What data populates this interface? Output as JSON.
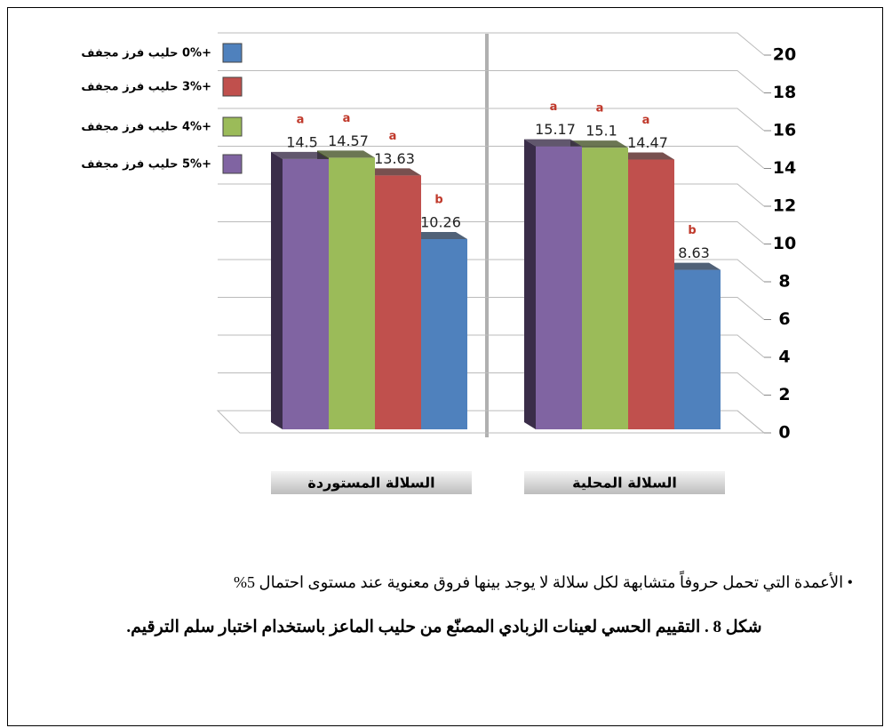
{
  "chart_data": {
    "type": "bar3d",
    "categories": [
      "السلالة المستوردة",
      "السلالة المحلية"
    ],
    "series": [
      {
        "name": "+5% حليب فرز مجفف",
        "color": "#8064a2",
        "values": [
          14.5,
          15.17
        ],
        "letters": [
          "a",
          "a"
        ]
      },
      {
        "name": "+4% حليب فرز مجفف",
        "color": "#9bbb59",
        "values": [
          14.57,
          15.1
        ],
        "letters": [
          "a",
          "a"
        ]
      },
      {
        "name": "+3% حليب فرز مجفف",
        "color": "#c0504d",
        "values": [
          13.63,
          14.47
        ],
        "letters": [
          "a",
          "a"
        ]
      },
      {
        "name": "+0% حليب فرز مجفف",
        "color": "#4f81bd",
        "values": [
          10.26,
          8.63
        ],
        "letters": [
          "b",
          "b"
        ]
      }
    ],
    "ylim": [
      0,
      20
    ],
    "yticks": [
      0,
      2,
      4,
      6,
      8,
      10,
      12,
      14,
      16,
      18,
      20
    ],
    "grid": true
  },
  "footnote": "• الأعمدة التي تحمل حروفاً متشابهة لكل سلالة لا يوجد بينها فروق معنوية عند مستوى احتمال 5%",
  "caption": "شكل 8 . التقييم الحسي لعينات الزبادي المصنّع من حليب الماعز باستخدام اختبار سلم الترقيم."
}
